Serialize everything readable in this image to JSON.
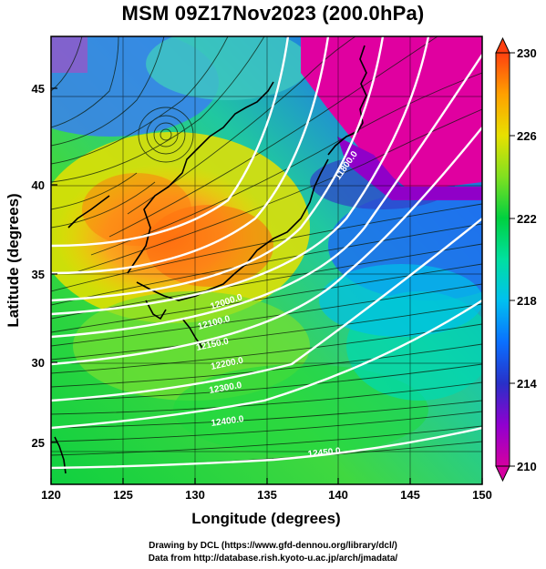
{
  "title": "MSM 09Z17Nov2023 (200.0hPa)",
  "map": {
    "xlabel": "Longitude (degrees)",
    "ylabel": "Latitude  (degrees)",
    "xticks": [
      "120",
      "125",
      "130",
      "135",
      "140",
      "145",
      "150"
    ],
    "yticks": [
      "45",
      "40",
      "35",
      "30",
      "25"
    ],
    "lon_range": [
      120,
      150
    ],
    "lat_range": [
      22.4,
      47.6
    ]
  },
  "colorbar": {
    "min": 210,
    "max": 230,
    "labels": [
      "230",
      "226",
      "222",
      "218",
      "214",
      "210"
    ],
    "colors": [
      "#e00080",
      "#c000e0",
      "#2020c0",
      "#0070ff",
      "#00c8ff",
      "#00e8a0",
      "#00d040",
      "#80e020",
      "#e8e000",
      "#ffa000",
      "#ff6010",
      "#e82000"
    ]
  },
  "contours": {
    "labels": [
      "11800.0",
      "12000.0",
      "12100.0",
      "12150.0",
      "12200.0",
      "12300.0",
      "12400.0",
      "12450.0"
    ]
  },
  "footer": {
    "line1": "Drawing by DCL (https://www.gfd-dennou.org/library/dcl/)",
    "line2": "Data from http://database.rish.kyoto-u.ac.jp/arch/jmadata/"
  }
}
